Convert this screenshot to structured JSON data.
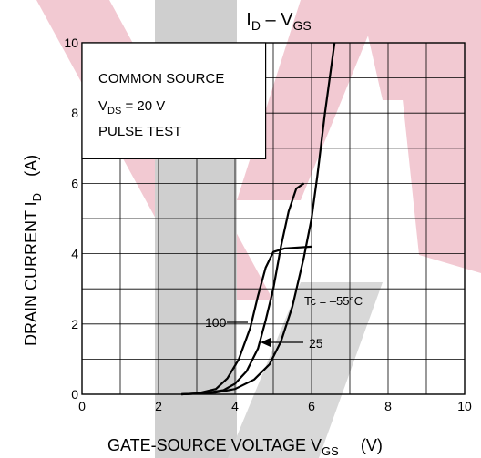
{
  "chart_data": {
    "type": "line",
    "title": {
      "main": "I",
      "sub": "D",
      "rest": " – V",
      "sub2": "GS"
    },
    "xlabel": {
      "main": "GATE-SOURCE VOLTAGE   V",
      "sub": "GS",
      "unit": "(V)"
    },
    "ylabel": {
      "main": "DRAIN CURRENT   I",
      "sub": "D",
      "unit": "(A)"
    },
    "xlim": [
      0,
      10
    ],
    "ylim": [
      0,
      10
    ],
    "x_ticks": [
      0,
      2,
      4,
      6,
      8,
      10
    ],
    "y_ticks": [
      0,
      2,
      4,
      6,
      8,
      10
    ],
    "minor_grid_step": 1,
    "grid": true,
    "conditions": [
      {
        "main": "COMMON SOURCE"
      },
      {
        "main": "V",
        "sub": "DS",
        "rest": " = 20 V"
      },
      {
        "main": "PULSE TEST"
      }
    ],
    "series": [
      {
        "name": "Tc = –55°C",
        "points": [
          [
            2.6,
            0
          ],
          [
            3.0,
            0.02
          ],
          [
            3.5,
            0.05
          ],
          [
            4.0,
            0.15
          ],
          [
            4.5,
            0.42
          ],
          [
            4.9,
            0.85
          ],
          [
            5.2,
            1.5
          ],
          [
            5.5,
            2.5
          ],
          [
            5.8,
            3.9
          ],
          [
            6.0,
            5.0
          ],
          [
            6.15,
            6.2
          ],
          [
            6.35,
            8.0
          ],
          [
            6.6,
            10.0
          ]
        ]
      },
      {
        "name": "25",
        "points": [
          [
            2.6,
            0
          ],
          [
            3.2,
            0.03
          ],
          [
            3.7,
            0.12
          ],
          [
            4.0,
            0.3
          ],
          [
            4.3,
            0.65
          ],
          [
            4.6,
            1.3
          ],
          [
            4.8,
            2.1
          ],
          [
            5.0,
            3.0
          ],
          [
            5.2,
            4.2
          ],
          [
            5.4,
            5.2
          ],
          [
            5.6,
            5.85
          ],
          [
            5.8,
            6.0
          ]
        ]
      },
      {
        "name": "100",
        "points": [
          [
            2.6,
            0
          ],
          [
            3.0,
            0.02
          ],
          [
            3.5,
            0.15
          ],
          [
            3.8,
            0.45
          ],
          [
            4.1,
            1.0
          ],
          [
            4.4,
            1.9
          ],
          [
            4.6,
            2.8
          ],
          [
            4.8,
            3.6
          ],
          [
            5.0,
            4.05
          ],
          [
            5.3,
            4.15
          ],
          [
            6.0,
            4.2
          ]
        ]
      }
    ],
    "annotations": {
      "tc_label": "Tc = –55°C",
      "label_25": "25",
      "label_100": "100"
    },
    "colors": {
      "curve": "#000000",
      "grid": "#000000",
      "text": "#000000"
    }
  }
}
